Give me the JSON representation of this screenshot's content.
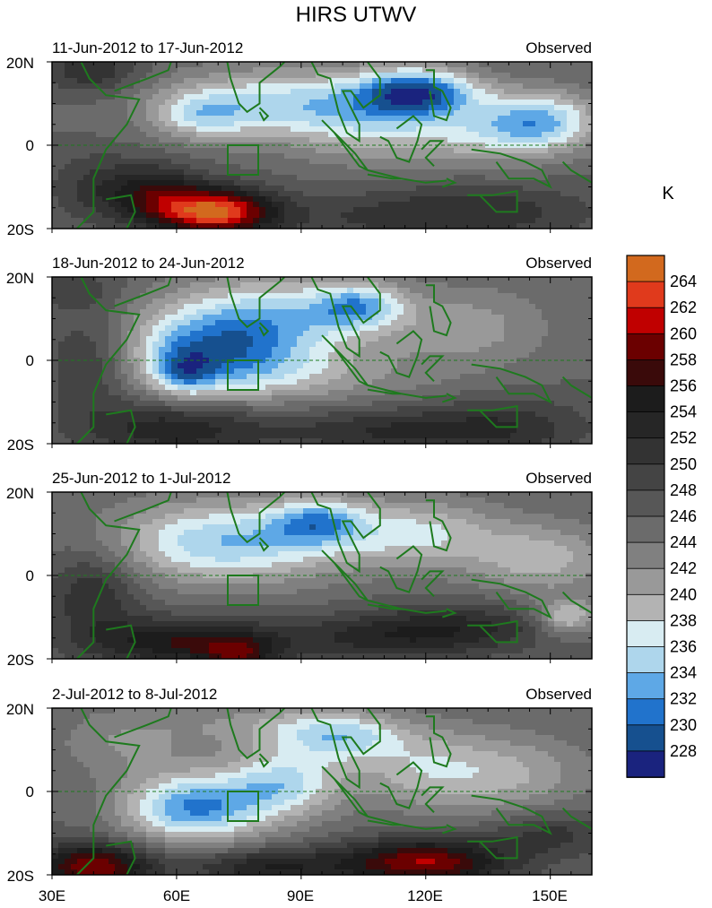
{
  "figure": {
    "title": "HIRS UTWV",
    "unit_label": "K",
    "x_tick_labels": [
      "30E",
      "60E",
      "90E",
      "120E",
      "150E"
    ],
    "y_tick_labels": [
      "20N",
      "0",
      "20S"
    ],
    "x_range_deg_east": [
      30,
      160
    ],
    "y_range_deg": [
      -20,
      20
    ]
  },
  "panels": [
    {
      "period": "11-Jun-2012 to 17-Jun-2012",
      "tag": "Observed"
    },
    {
      "period": "18-Jun-2012 to 24-Jun-2012",
      "tag": "Observed"
    },
    {
      "period": "25-Jun-2012 to 1-Jul-2012",
      "tag": "Observed"
    },
    {
      "period": "2-Jul-2012 to 8-Jul-2012",
      "tag": "Observed"
    }
  ],
  "colorbar": {
    "labels": [
      "264",
      "262",
      "260",
      "258",
      "256",
      "254",
      "252",
      "250",
      "248",
      "246",
      "244",
      "242",
      "240",
      "238",
      "236",
      "234",
      "232",
      "230",
      "228"
    ],
    "colors": [
      "#d2691e",
      "#e03a1c",
      "#c00000",
      "#6b0000",
      "#3a0a0a",
      "#1c1c1c",
      "#262626",
      "#333333",
      "#444444",
      "#575757",
      "#6b6b6b",
      "#808080",
      "#999999",
      "#b3b3b3",
      "#d8ecf2",
      "#aed6ec",
      "#5ea8e6",
      "#2173cc",
      "#16508f",
      "#1a237e"
    ],
    "colors_note": "top to bottom"
  },
  "colors": {
    "coastline": "#1e7a1e",
    "equator_line": "#1e7a1e"
  }
}
